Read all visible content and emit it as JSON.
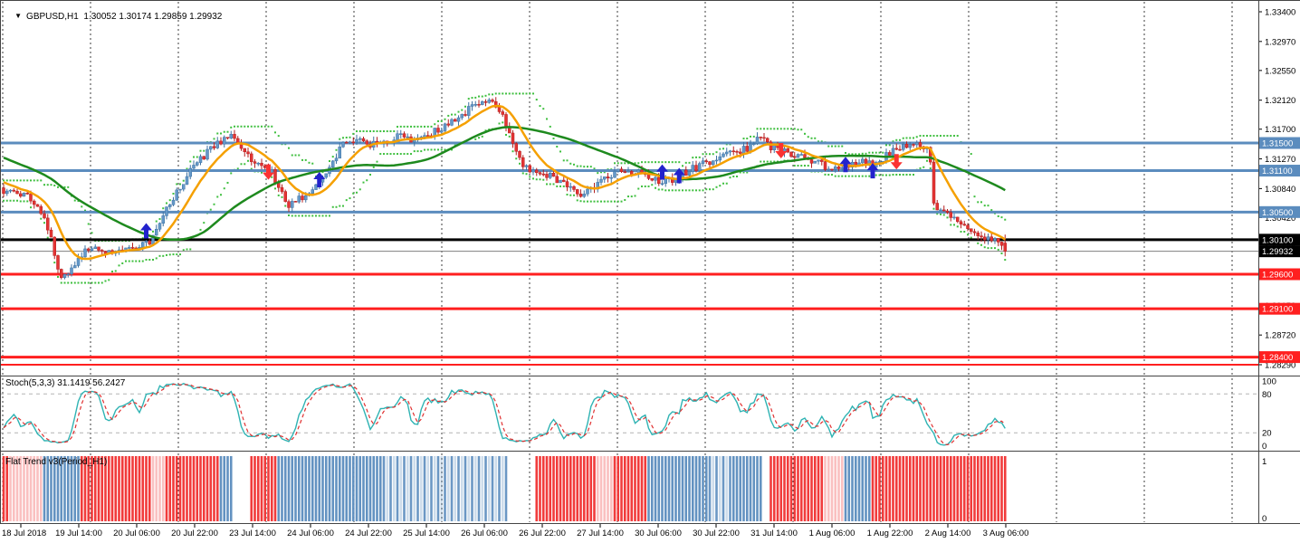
{
  "header": {
    "title": "GBPUSD,H1  1.30052 1.30174 1.29859 1.29932",
    "dropdown_icon": "▼"
  },
  "indicator_labels": {
    "stochastic": "Stoch(5,3,3) 31.1419 56.2427",
    "flat_trend": "Flat Trend v3(Period_H1)"
  },
  "colors": {
    "bull": "#6599c9",
    "bull_border": "#3f72a3",
    "bear": "#e43434",
    "bear_border": "#b42020",
    "ma_fast": "#f5a000",
    "ma_slow": "#1e8a1e",
    "band": "#3fbf3f",
    "resistance": "#5b8cbe",
    "support": "#ff1f1f",
    "pivot": "#000000",
    "bid": "#808080",
    "stoch_k": "#2fb3b3",
    "stoch_d": "#e03131",
    "ft_red": "#f03030",
    "ft_blue": "#5b8cbe",
    "up_arrow": "#2222cc",
    "down_arrow": "#fa3232",
    "grid": "#3c3c3c",
    "border": "#444444"
  },
  "chart_data": {
    "type": "candlestick",
    "symbol": "GBPUSD",
    "timeframe": "H1",
    "title": "GBPUSD,H1 1.30052 1.30174 1.29859 1.29932",
    "current_bar": {
      "open": 1.30052,
      "high": 1.30174,
      "low": 1.29859,
      "close": 1.29932
    },
    "bars_count": 296,
    "seed": 20180803,
    "ylim": [
      1.281,
      1.3357
    ],
    "price_axis_ticks": [
      [
        "1.33400",
        1.334
      ],
      [
        "1.32970",
        1.3297
      ],
      [
        "1.32550",
        1.3255
      ],
      [
        "1.32120",
        1.3212
      ],
      [
        "1.31700",
        1.317
      ],
      [
        "1.31270",
        1.3127
      ],
      [
        "1.30840",
        1.3084
      ],
      [
        "1.30420",
        1.3042
      ],
      [
        "1.29990",
        1.2999
      ],
      [
        "1.29570",
        1.2957
      ],
      [
        "1.29150",
        1.2915
      ],
      [
        "1.28720",
        1.2872
      ],
      [
        "1.28290",
        1.2829
      ]
    ],
    "levels": [
      {
        "label": "1.31500",
        "price": 1.315,
        "kind": "resistance",
        "line": "#5b8cbe",
        "w": 3,
        "badge": true
      },
      {
        "label": "1.31100",
        "price": 1.311,
        "kind": "resistance",
        "line": "#5b8cbe",
        "w": 3,
        "badge": true
      },
      {
        "label": "1.30500",
        "price": 1.305,
        "kind": "resistance",
        "line": "#5b8cbe",
        "w": 3,
        "badge": true
      },
      {
        "label": "1.30100",
        "price": 1.301,
        "kind": "pivot",
        "line": "#000000",
        "w": 3,
        "badge": true
      },
      {
        "label": "1.29932",
        "price": 1.29932,
        "kind": "bid-price",
        "line": "#808080",
        "w": 1,
        "badge": true,
        "badgebg": "#000000"
      },
      {
        "label": "1.29600",
        "price": 1.296,
        "kind": "support",
        "line": "#ff1f1f",
        "w": 3,
        "badge": true
      },
      {
        "label": "1.29100",
        "price": 1.291,
        "kind": "support",
        "line": "#ff1f1f",
        "w": 3,
        "badge": true
      },
      {
        "label": "1.28400",
        "price": 1.284,
        "kind": "support",
        "line": "#ff1f1f",
        "w": 3,
        "badge": true
      },
      {
        "label": "1.28290",
        "price": 1.2829,
        "kind": "support",
        "line": "#ff1f1f",
        "w": 2,
        "badge": false
      }
    ],
    "time_axis_labels": [
      "18 Jul 2018",
      "19 Jul 14:00",
      "20 Jul 06:00",
      "20 Jul 22:00",
      "23 Jul 14:00",
      "24 Jul 06:00",
      "24 Jul 22:00",
      "25 Jul 14:00",
      "26 Jul 06:00",
      "26 Jul 22:00",
      "27 Jul 14:00",
      "30 Jul 06:00",
      "30 Jul 22:00",
      "31 Jul 14:00",
      "1 Aug 06:00",
      "1 Aug 22:00",
      "2 Aug 14:00",
      "3 Aug 06:00"
    ],
    "price_path_anchors": [
      [
        0,
        1.3082
      ],
      [
        6,
        1.3076
      ],
      [
        10,
        1.306
      ],
      [
        13,
        1.3028
      ],
      [
        17,
        1.2952
      ],
      [
        20,
        1.2968
      ],
      [
        24,
        1.2996
      ],
      [
        32,
        1.2992
      ],
      [
        40,
        1.3
      ],
      [
        43,
        1.3008
      ],
      [
        48,
        1.3058
      ],
      [
        54,
        1.3102
      ],
      [
        60,
        1.3138
      ],
      [
        64,
        1.3152
      ],
      [
        67,
        1.3158
      ],
      [
        70,
        1.314
      ],
      [
        75,
        1.3118
      ],
      [
        79,
        1.3108
      ],
      [
        84,
        1.3058
      ],
      [
        88,
        1.3072
      ],
      [
        93,
        1.3092
      ],
      [
        97,
        1.3124
      ],
      [
        100,
        1.3148
      ],
      [
        104,
        1.3158
      ],
      [
        108,
        1.3146
      ],
      [
        113,
        1.3152
      ],
      [
        117,
        1.3164
      ],
      [
        121,
        1.3152
      ],
      [
        126,
        1.3164
      ],
      [
        130,
        1.3176
      ],
      [
        135,
        1.3192
      ],
      [
        140,
        1.3208
      ],
      [
        143,
        1.3214
      ],
      [
        146,
        1.3198
      ],
      [
        149,
        1.3166
      ],
      [
        152,
        1.3124
      ],
      [
        155,
        1.3108
      ],
      [
        160,
        1.3104
      ],
      [
        164,
        1.3092
      ],
      [
        168,
        1.3082
      ],
      [
        171,
        1.3074
      ],
      [
        174,
        1.3086
      ],
      [
        178,
        1.3102
      ],
      [
        182,
        1.311
      ],
      [
        186,
        1.3108
      ],
      [
        190,
        1.3098
      ],
      [
        193,
        1.3094
      ],
      [
        197,
        1.3098
      ],
      [
        201,
        1.3108
      ],
      [
        206,
        1.312
      ],
      [
        211,
        1.313
      ],
      [
        216,
        1.3136
      ],
      [
        220,
        1.3144
      ],
      [
        223,
        1.3158
      ],
      [
        226,
        1.3144
      ],
      [
        230,
        1.3138
      ],
      [
        234,
        1.3132
      ],
      [
        238,
        1.3124
      ],
      [
        242,
        1.3116
      ],
      [
        246,
        1.311
      ],
      [
        250,
        1.3118
      ],
      [
        253,
        1.3126
      ],
      [
        256,
        1.3116
      ],
      [
        259,
        1.3128
      ],
      [
        262,
        1.314
      ],
      [
        266,
        1.3146
      ],
      [
        269,
        1.315
      ],
      [
        272,
        1.314
      ],
      [
        273,
        1.312
      ],
      [
        274,
        1.3062
      ],
      [
        277,
        1.305
      ],
      [
        280,
        1.3042
      ],
      [
        283,
        1.303
      ],
      [
        286,
        1.3018
      ],
      [
        289,
        1.3012
      ],
      [
        292,
        1.3014
      ],
      [
        294,
        1.3005
      ],
      [
        295,
        1.29932
      ]
    ],
    "signal_arrows": [
      {
        "bar": 42,
        "dir": "up",
        "price": 1.3034
      },
      {
        "bar": 78,
        "dir": "down",
        "price": 1.3119
      },
      {
        "bar": 93,
        "dir": "up",
        "price": 1.3108
      },
      {
        "bar": 194,
        "dir": "up",
        "price": 1.3119
      },
      {
        "bar": 199,
        "dir": "up",
        "price": 1.3114
      },
      {
        "bar": 229,
        "dir": "down",
        "price": 1.315
      },
      {
        "bar": 248,
        "dir": "up",
        "price": 1.313
      },
      {
        "bar": 256,
        "dir": "up",
        "price": 1.3121
      },
      {
        "bar": 263,
        "dir": "down",
        "price": 1.3134
      }
    ],
    "indicators": {
      "moving_averages": [
        {
          "name": "fast-lwma",
          "color": "#f5a000",
          "period": 15
        },
        {
          "name": "slow-sma",
          "color": "#1e8a1e",
          "period": 45
        }
      ],
      "band": {
        "name": "fractal-channel",
        "color": "#3fbf3f",
        "style": "dotted"
      },
      "stochastic": {
        "label": "Stoch(5,3,3) 31.1419 56.2427",
        "k_value": 31.1419,
        "d_value": 56.2427,
        "axis_labels": [
          100,
          80,
          20,
          0
        ],
        "level_lines": [
          80,
          20
        ]
      },
      "flat_trend": {
        "label": "Flat Trend v3(Period_H1)",
        "axis_labels": [
          1,
          0
        ],
        "segments": [
          {
            "c": "r",
            "n": 2
          },
          {
            "c": "R",
            "n": 10
          },
          {
            "c": "b",
            "n": 11
          },
          {
            "c": "r",
            "n": 21
          },
          {
            "c": "R",
            "n": 4
          },
          {
            "c": "r",
            "n": 16
          },
          {
            "c": "b",
            "n": 4
          },
          {
            "c": "w",
            "n": 5
          },
          {
            "c": "r",
            "n": 8
          },
          {
            "c": "b",
            "n": 31
          },
          {
            "c": "B",
            "n": 26
          },
          {
            "c": "B",
            "n": 11
          },
          {
            "c": "w",
            "n": 8
          },
          {
            "c": "r",
            "n": 18
          },
          {
            "c": "R",
            "n": 5
          },
          {
            "c": "r",
            "n": 10
          },
          {
            "c": "b",
            "n": 18
          },
          {
            "c": "B",
            "n": 7
          },
          {
            "c": "b",
            "n": 9
          },
          {
            "c": "w",
            "n": 2
          },
          {
            "c": "r",
            "n": 16
          },
          {
            "c": "R",
            "n": 6
          },
          {
            "c": "b",
            "n": 8
          },
          {
            "c": "r",
            "n": 40
          }
        ]
      }
    }
  }
}
